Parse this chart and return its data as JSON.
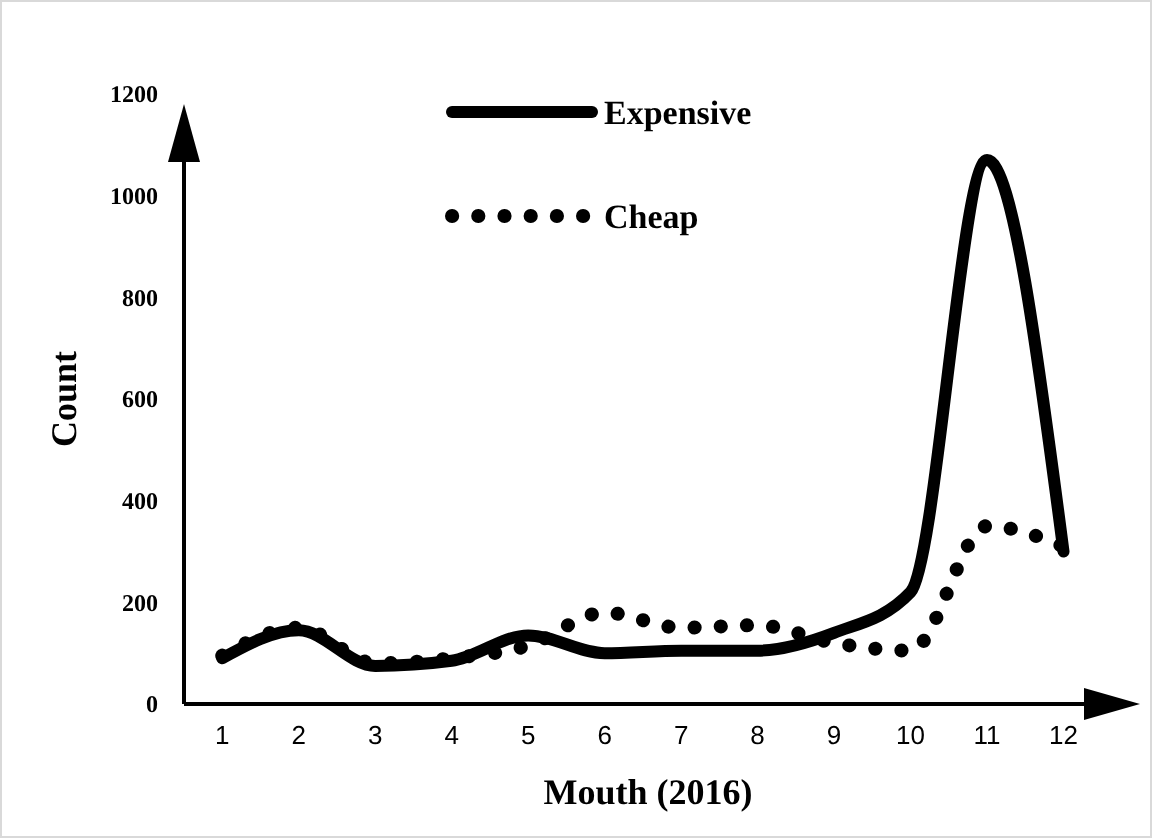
{
  "chart_data": {
    "type": "line",
    "xlabel": "Mouth (2016)",
    "ylabel": "Count",
    "x": [
      1,
      2,
      3,
      4,
      5,
      6,
      7,
      8,
      9,
      10,
      11,
      12
    ],
    "xlim": [
      0.5,
      13
    ],
    "xticks": [
      1,
      2,
      3,
      4,
      5,
      6,
      7,
      8,
      9,
      10,
      11,
      12
    ],
    "series": [
      {
        "name": "Expensive",
        "color": "#000000",
        "line_style": "solid",
        "values": [
          90,
          145,
          75,
          85,
          135,
          100,
          105,
          105,
          140,
          220,
          1070,
          300
        ]
      },
      {
        "name": "Cheap",
        "color": "#000000",
        "line_style": "dotted",
        "values": [
          95,
          150,
          80,
          90,
          115,
          180,
          150,
          155,
          120,
          105,
          350,
          310
        ]
      }
    ],
    "ylim": [
      0,
      1200
    ],
    "yticks": [
      0,
      200,
      400,
      600,
      800,
      1000,
      1200
    ],
    "grid": false,
    "legend": "top",
    "marker": "none"
  }
}
